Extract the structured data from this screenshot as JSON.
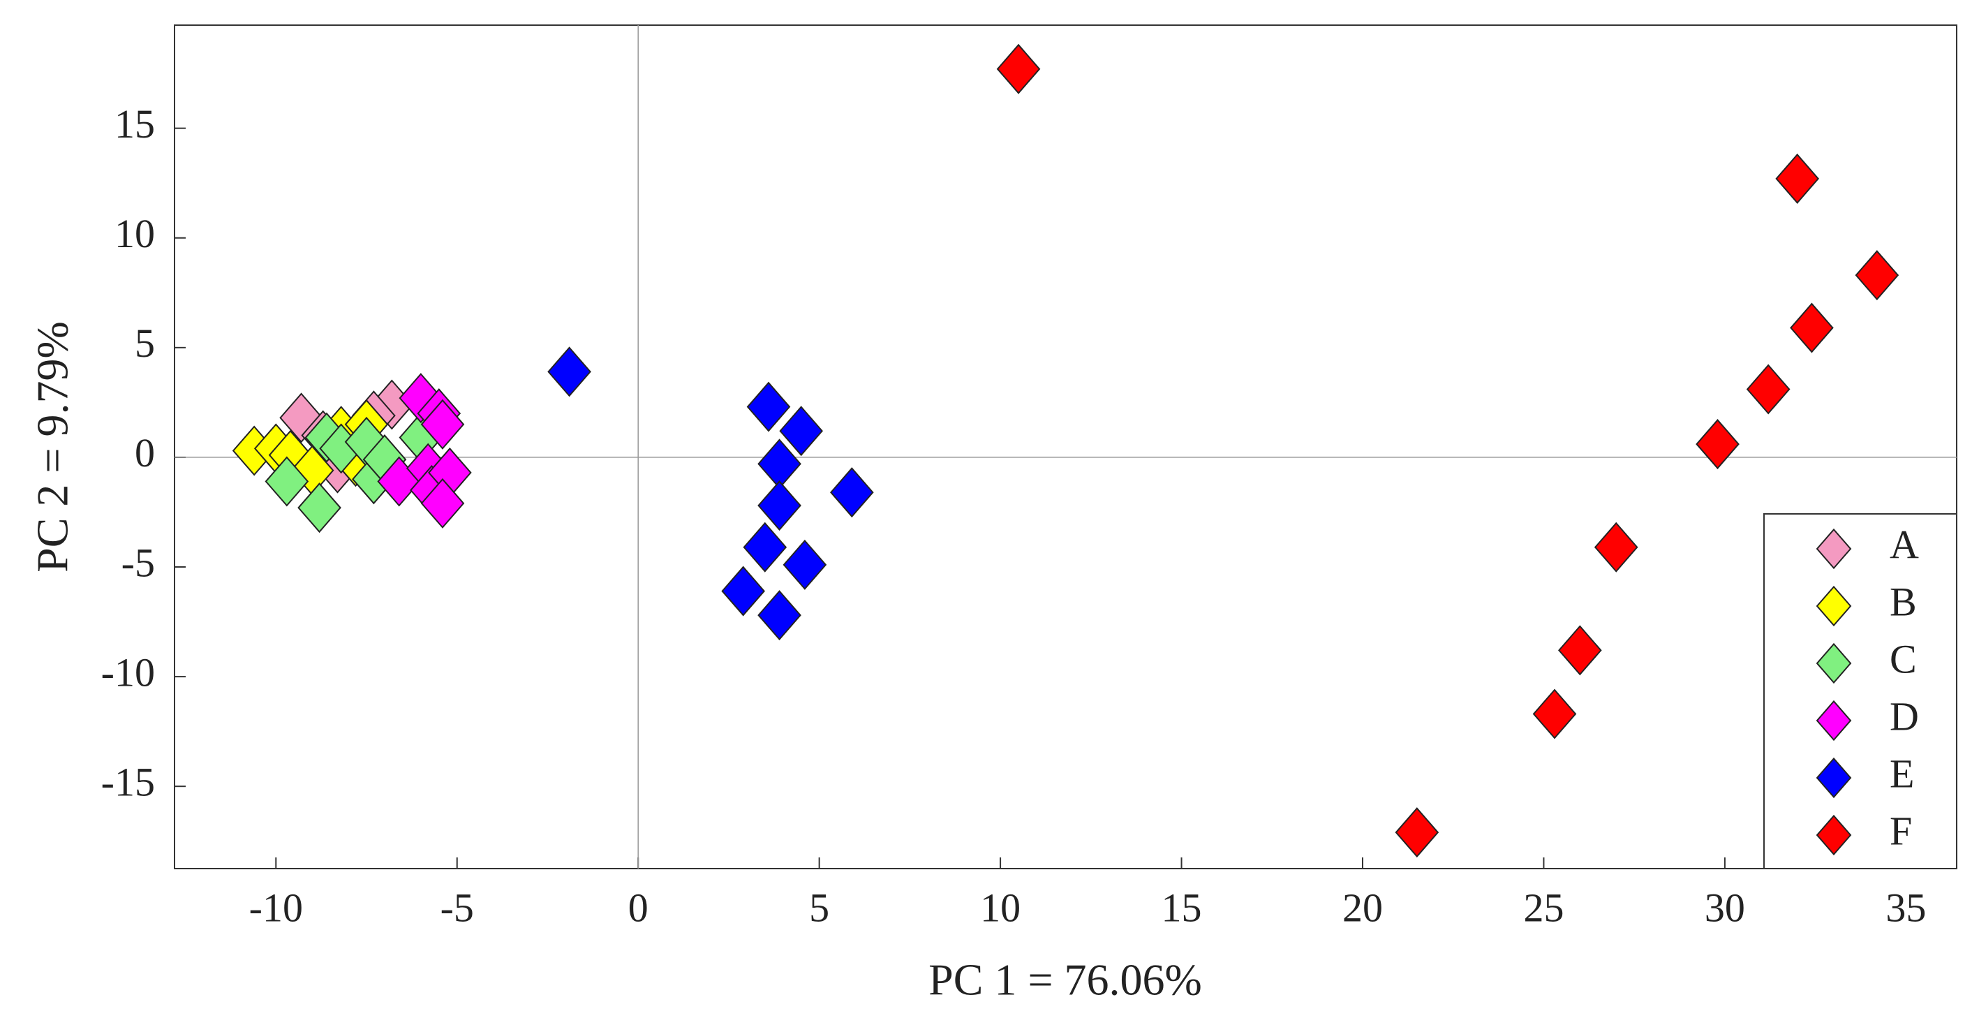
{
  "chart_data": {
    "type": "scatter",
    "x_label": "PC 1 = 76.06%",
    "y_label": "PC 2 = 9.79%",
    "xlim": [
      -12.8,
      36.4
    ],
    "ylim": [
      -18.75,
      19.7
    ],
    "xticks": [
      -10,
      -5,
      0,
      5,
      10,
      15,
      20,
      25,
      30,
      35
    ],
    "yticks": [
      -15,
      -10,
      -5,
      0,
      5,
      10,
      15
    ],
    "zero_lines": true,
    "legend": "lower right",
    "series": [
      {
        "name": "A",
        "color": "#f49ac1",
        "x": [
          -9.3,
          -6.8,
          -7.3,
          -8.3,
          -8.7
        ],
        "values": [
          1.8,
          2.4,
          1.9,
          -0.5,
          1.0
        ]
      },
      {
        "name": "B",
        "color": "#ffff00",
        "x": [
          -10.6,
          -10.0,
          -9.6,
          -9.0,
          -8.2,
          -7.5,
          -7.8
        ],
        "values": [
          0.3,
          0.4,
          0.1,
          -0.6,
          1.2,
          1.5,
          -0.2
        ]
      },
      {
        "name": "C",
        "color": "#80f080",
        "x": [
          -9.7,
          -8.8,
          -8.6,
          -8.2,
          -7.5,
          -7.3,
          -7.0,
          -6.0
        ],
        "values": [
          -1.1,
          -2.3,
          0.9,
          0.4,
          0.7,
          -1.0,
          -0.1,
          0.9
        ]
      },
      {
        "name": "D",
        "color": "#ff00ff",
        "x": [
          -6.0,
          -5.5,
          -5.4,
          -6.6,
          -5.8,
          -5.7,
          -5.2,
          -5.4
        ],
        "values": [
          2.7,
          2.0,
          1.5,
          -1.1,
          -0.5,
          -1.5,
          -0.7,
          -2.1
        ]
      },
      {
        "name": "E",
        "color": "#0000ff",
        "x": [
          -1.9,
          3.6,
          4.5,
          3.9,
          5.9,
          3.9,
          3.5,
          4.6,
          2.9,
          3.9
        ],
        "values": [
          3.9,
          2.3,
          1.2,
          -0.3,
          -1.6,
          -2.2,
          -4.1,
          -4.9,
          -6.1,
          -7.2
        ]
      },
      {
        "name": "F",
        "color": "#ff0000",
        "x": [
          10.5,
          32.0,
          34.2,
          32.4,
          31.2,
          29.8,
          27.0,
          26.0,
          25.3,
          21.5
        ],
        "values": [
          17.7,
          12.7,
          8.3,
          5.9,
          3.1,
          0.6,
          -4.1,
          -8.8,
          -11.7,
          -17.1
        ]
      }
    ]
  }
}
